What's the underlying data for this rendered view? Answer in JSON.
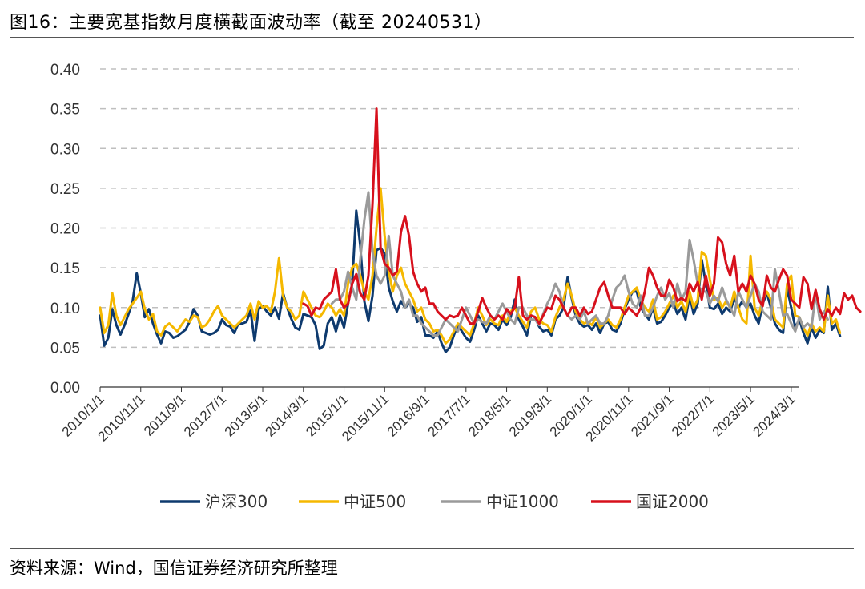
{
  "title": "图16：主要宽基指数月度横截面波动率（截至 20240531）",
  "source": "资料来源：Wind，国信证券经济研究所整理",
  "colors": {
    "hs300": "#0e3a6e",
    "zz500": "#f5b800",
    "zz1000": "#9a9a9a",
    "gz2000": "#d7101c",
    "grid": "#bfbfbf",
    "axis": "#333333"
  },
  "chart_data": {
    "type": "line",
    "ylim": [
      0,
      0.4
    ],
    "yticks": [
      "0.40",
      "0.35",
      "0.30",
      "0.25",
      "0.20",
      "0.15",
      "0.10",
      "0.05",
      "0.00"
    ],
    "x_start": "2010-01",
    "x_end": "2024-05",
    "xtick_labels": [
      "2010/1/1",
      "2010/11/1",
      "2011/9/1",
      "2012/7/1",
      "2013/5/1",
      "2014/3/1",
      "2015/1/1",
      "2015/11/1",
      "2016/9/1",
      "2017/7/1",
      "2018/5/1",
      "2019/3/1",
      "2020/1/1",
      "2020/11/1",
      "2021/9/1",
      "2022/7/1",
      "2023/5/1",
      "2024/3/1"
    ],
    "grid": "horizontal dashed",
    "legend_position": "bottom",
    "series": [
      {
        "name": "沪深300",
        "key": "hs300",
        "start": "2010-01",
        "values": [
          0.09,
          0.052,
          0.062,
          0.098,
          0.078,
          0.066,
          0.078,
          0.092,
          0.108,
          0.143,
          0.118,
          0.088,
          0.098,
          0.08,
          0.066,
          0.055,
          0.07,
          0.068,
          0.062,
          0.064,
          0.068,
          0.072,
          0.082,
          0.098,
          0.09,
          0.07,
          0.068,
          0.066,
          0.068,
          0.072,
          0.085,
          0.078,
          0.076,
          0.068,
          0.08,
          0.08,
          0.082,
          0.096,
          0.058,
          0.098,
          0.102,
          0.095,
          0.09,
          0.1,
          0.086,
          0.118,
          0.1,
          0.086,
          0.075,
          0.072,
          0.092,
          0.09,
          0.088,
          0.078,
          0.048,
          0.052,
          0.08,
          0.088,
          0.07,
          0.09,
          0.075,
          0.105,
          0.13,
          0.222,
          0.178,
          0.108,
          0.083,
          0.115,
          0.172,
          0.175,
          0.168,
          0.125,
          0.108,
          0.095,
          0.108,
          0.1,
          0.105,
          0.1,
          0.082,
          0.088,
          0.065,
          0.065,
          0.062,
          0.07,
          0.055,
          0.044,
          0.05,
          0.065,
          0.078,
          0.07,
          0.062,
          0.057,
          0.072,
          0.09,
          0.08,
          0.07,
          0.08,
          0.078,
          0.072,
          0.085,
          0.078,
          0.088,
          0.11,
          0.085,
          0.076,
          0.065,
          0.09,
          0.088,
          0.076,
          0.07,
          0.072,
          0.065,
          0.085,
          0.09,
          0.1,
          0.138,
          0.112,
          0.09,
          0.08,
          0.076,
          0.078,
          0.072,
          0.08,
          0.068,
          0.08,
          0.082,
          0.072,
          0.07,
          0.08,
          0.098,
          0.11,
          0.12,
          0.12,
          0.1,
          0.092,
          0.085,
          0.1,
          0.08,
          0.082,
          0.09,
          0.1,
          0.106,
          0.092,
          0.1,
          0.085,
          0.115,
          0.092,
          0.105,
          0.16,
          0.13,
          0.1,
          0.098,
          0.105,
          0.092,
          0.1,
          0.095,
          0.112,
          0.1,
          0.108,
          0.1,
          0.105,
          0.09,
          0.08,
          0.105,
          0.118,
          0.1,
          0.08,
          0.072,
          0.068,
          0.125,
          0.1,
          0.075,
          0.085,
          0.068,
          0.055,
          0.075,
          0.062,
          0.072,
          0.068,
          0.126,
          0.072,
          0.08,
          0.064
        ]
      },
      {
        "name": "中证500",
        "key": "zz500",
        "start": "2010-01",
        "values": [
          0.1,
          0.068,
          0.078,
          0.118,
          0.09,
          0.078,
          0.088,
          0.098,
          0.105,
          0.112,
          0.12,
          0.098,
          0.085,
          0.092,
          0.07,
          0.065,
          0.076,
          0.08,
          0.075,
          0.07,
          0.078,
          0.085,
          0.082,
          0.09,
          0.088,
          0.075,
          0.078,
          0.085,
          0.095,
          0.102,
          0.09,
          0.085,
          0.08,
          0.075,
          0.08,
          0.085,
          0.09,
          0.105,
          0.085,
          0.108,
          0.1,
          0.102,
          0.095,
          0.12,
          0.162,
          0.115,
          0.1,
          0.095,
          0.085,
          0.09,
          0.12,
          0.11,
          0.1,
          0.09,
          0.088,
          0.095,
          0.105,
          0.1,
          0.09,
          0.098,
          0.09,
          0.13,
          0.15,
          0.155,
          0.14,
          0.12,
          0.11,
          0.14,
          0.2,
          0.25,
          0.19,
          0.145,
          0.12,
          0.14,
          0.15,
          0.13,
          0.12,
          0.11,
          0.095,
          0.1,
          0.085,
          0.08,
          0.07,
          0.072,
          0.065,
          0.055,
          0.06,
          0.07,
          0.08,
          0.075,
          0.07,
          0.065,
          0.08,
          0.1,
          0.09,
          0.078,
          0.085,
          0.08,
          0.078,
          0.09,
          0.082,
          0.095,
          0.1,
          0.09,
          0.082,
          0.075,
          0.095,
          0.1,
          0.085,
          0.08,
          0.078,
          0.07,
          0.088,
          0.1,
          0.11,
          0.13,
          0.115,
          0.095,
          0.085,
          0.08,
          0.082,
          0.078,
          0.088,
          0.075,
          0.08,
          0.085,
          0.078,
          0.075,
          0.085,
          0.1,
          0.115,
          0.12,
          0.125,
          0.11,
          0.1,
          0.095,
          0.11,
          0.085,
          0.088,
          0.095,
          0.105,
          0.115,
          0.1,
          0.108,
          0.095,
          0.12,
          0.1,
          0.11,
          0.17,
          0.165,
          0.135,
          0.11,
          0.112,
          0.1,
          0.108,
          0.1,
          0.12,
          0.1,
          0.085,
          0.08,
          0.165,
          0.1,
          0.09,
          0.11,
          0.12,
          0.11,
          0.085,
          0.08,
          0.075,
          0.13,
          0.14,
          0.09,
          0.088,
          0.075,
          0.065,
          0.08,
          0.07,
          0.075,
          0.07,
          0.115,
          0.08,
          0.085,
          0.068
        ]
      },
      {
        "name": "中证1000",
        "key": "zz1000",
        "start": "2014-10",
        "values": [
          0.105,
          0.11,
          0.11,
          0.12,
          0.145,
          0.125,
          0.11,
          0.16,
          0.21,
          0.245,
          0.17,
          0.14,
          0.13,
          0.14,
          0.19,
          0.14,
          0.13,
          0.12,
          0.1,
          0.11,
          0.09,
          0.09,
          0.08,
          0.075,
          0.07,
          0.065,
          0.065,
          0.075,
          0.085,
          0.08,
          0.075,
          0.07,
          0.085,
          0.1,
          0.09,
          0.08,
          0.085,
          0.082,
          0.08,
          0.09,
          0.085,
          0.095,
          0.105,
          0.095,
          0.085,
          0.08,
          0.1,
          0.1,
          0.09,
          0.085,
          0.085,
          0.078,
          0.092,
          0.105,
          0.115,
          0.13,
          0.12,
          0.1,
          0.09,
          0.085,
          0.09,
          0.085,
          0.095,
          0.08,
          0.085,
          0.09,
          0.08,
          0.08,
          0.09,
          0.11,
          0.125,
          0.13,
          0.14,
          0.12,
          0.105,
          0.1,
          0.115,
          0.09,
          0.09,
          0.1,
          0.115,
          0.125,
          0.11,
          0.118,
          0.1,
          0.13,
          0.11,
          0.12,
          0.185,
          0.16,
          0.13,
          0.12,
          0.12,
          0.105,
          0.115,
          0.108,
          0.125,
          0.11,
          0.1,
          0.09,
          0.12,
          0.11,
          0.1,
          0.115,
          0.13,
          0.12,
          0.095,
          0.09,
          0.085,
          0.148,
          0.12,
          0.09,
          0.092,
          0.08,
          0.07,
          0.088,
          0.075,
          0.08,
          0.075,
          0.118,
          0.085,
          0.095,
          0.085
        ]
      },
      {
        "name": "国证2000",
        "key": "gz2000",
        "start": "2014-03",
        "values": [
          0.105,
          0.102,
          0.09,
          0.1,
          0.098,
          0.11,
          0.115,
          0.12,
          0.148,
          0.11,
          0.1,
          0.105,
          0.13,
          0.142,
          0.118,
          0.11,
          0.14,
          0.23,
          0.35,
          0.175,
          0.155,
          0.15,
          0.14,
          0.145,
          0.195,
          0.215,
          0.19,
          0.145,
          0.13,
          0.12,
          0.125,
          0.105,
          0.105,
          0.095,
          0.09,
          0.085,
          0.09,
          0.088,
          0.09,
          0.1,
          0.09,
          0.08,
          0.08,
          0.095,
          0.112,
          0.1,
          0.09,
          0.085,
          0.09,
          0.085,
          0.098,
          0.092,
          0.1,
          0.138,
          0.09,
          0.085,
          0.09,
          0.088,
          0.08,
          0.09,
          0.1,
          0.098,
          0.115,
          0.11,
          0.1,
          0.09,
          0.1,
          0.1,
          0.09,
          0.1,
          0.092,
          0.095,
          0.11,
          0.125,
          0.132,
          0.115,
          0.1,
          0.1,
          0.1,
          0.092,
          0.1,
          0.095,
          0.09,
          0.1,
          0.12,
          0.15,
          0.14,
          0.125,
          0.115,
          0.115,
          0.135,
          0.125,
          0.108,
          0.112,
          0.108,
          0.13,
          0.12,
          0.132,
          0.11,
          0.14,
          0.115,
          0.13,
          0.188,
          0.182,
          0.155,
          0.14,
          0.165,
          0.12,
          0.13,
          0.12,
          0.14,
          0.13,
          0.11,
          0.102,
          0.14,
          0.125,
          0.12,
          0.135,
          0.148,
          0.14,
          0.11,
          0.105,
          0.1,
          0.138,
          0.13,
          0.098,
          0.122,
          0.098,
          0.085,
          0.098,
          0.09,
          0.1,
          0.092,
          0.118,
          0.11,
          0.115,
          0.1,
          0.095
        ]
      }
    ]
  }
}
